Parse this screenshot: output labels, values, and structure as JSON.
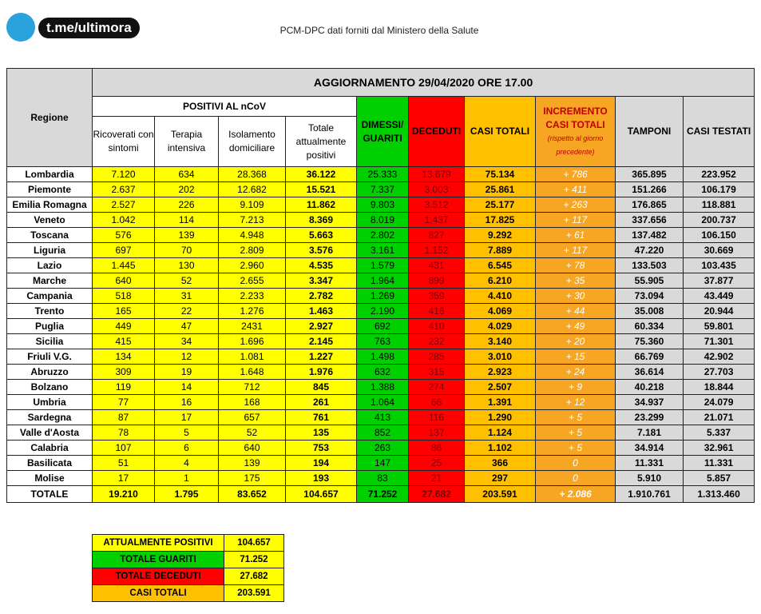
{
  "header": {
    "logo": "t.me/ultimora",
    "subtitle": "PCM-DPC dati forniti dal Ministero della Salute"
  },
  "table": {
    "title": "AGGIORNAMENTO 29/04/2020 ORE 17.00",
    "region_header": "Regione",
    "group_header": "POSITIVI AL nCoV",
    "columns": [
      "Ricoverati con sintomi",
      "Terapia intensiva",
      "Isolamento domiciliare",
      "Totale attualmente positivi",
      "DIMESSI/ GUARITI",
      "DECEDUTI",
      "CASI TOTALI",
      "INCREMENTO CASI TOTALI",
      "TAMPONI",
      "CASI TESTATI"
    ],
    "increment_note": "(rispetto al giorno precedente)",
    "rows": [
      [
        "Lombardia",
        "7.120",
        "634",
        "28.368",
        "36.122",
        "25.333",
        "13.679",
        "75.134",
        "+ 786",
        "365.895",
        "223.952"
      ],
      [
        "Piemonte",
        "2.637",
        "202",
        "12.682",
        "15.521",
        "7.337",
        "3.003",
        "25.861",
        "+ 411",
        "151.266",
        "106.179"
      ],
      [
        "Emilia Romagna",
        "2.527",
        "226",
        "9.109",
        "11.862",
        "9.803",
        "3.512",
        "25.177",
        "+ 263",
        "176.865",
        "118.881"
      ],
      [
        "Veneto",
        "1.042",
        "114",
        "7.213",
        "8.369",
        "8.019",
        "1.437",
        "17.825",
        "+ 117",
        "337.656",
        "200.737"
      ],
      [
        "Toscana",
        "576",
        "139",
        "4.948",
        "5.663",
        "2.802",
        "827",
        "9.292",
        "+ 61",
        "137.482",
        "106.150"
      ],
      [
        "Liguria",
        "697",
        "70",
        "2.809",
        "3.576",
        "3.161",
        "1.152",
        "7.889",
        "+ 117",
        "47.220",
        "30.669"
      ],
      [
        "Lazio",
        "1.445",
        "130",
        "2.960",
        "4.535",
        "1.579",
        "431",
        "6.545",
        "+ 78",
        "133.503",
        "103.435"
      ],
      [
        "Marche",
        "640",
        "52",
        "2.655",
        "3.347",
        "1.964",
        "899",
        "6.210",
        "+ 35",
        "55.905",
        "37.877"
      ],
      [
        "Campania",
        "518",
        "31",
        "2.233",
        "2.782",
        "1.269",
        "359",
        "4.410",
        "+ 30",
        "73.094",
        "43.449"
      ],
      [
        "Trento",
        "165",
        "22",
        "1.276",
        "1.463",
        "2.190",
        "416",
        "4.069",
        "+ 44",
        "35.008",
        "20.944"
      ],
      [
        "Puglia",
        "449",
        "47",
        "2431",
        "2.927",
        "692",
        "410",
        "4.029",
        "+ 49",
        "60.334",
        "59.801"
      ],
      [
        "Sicilia",
        "415",
        "34",
        "1.696",
        "2.145",
        "763",
        "232",
        "3.140",
        "+ 20",
        "75.360",
        "71.301"
      ],
      [
        "Friuli V.G.",
        "134",
        "12",
        "1.081",
        "1.227",
        "1.498",
        "285",
        "3.010",
        "+ 15",
        "66.769",
        "42.902"
      ],
      [
        "Abruzzo",
        "309",
        "19",
        "1.648",
        "1.976",
        "632",
        "315",
        "2.923",
        "+ 24",
        "36.614",
        "27.703"
      ],
      [
        "Bolzano",
        "119",
        "14",
        "712",
        "845",
        "1.388",
        "274",
        "2.507",
        "+ 9",
        "40.218",
        "18.844"
      ],
      [
        "Umbria",
        "77",
        "16",
        "168",
        "261",
        "1.064",
        "66",
        "1.391",
        "+ 12",
        "34.937",
        "24.079"
      ],
      [
        "Sardegna",
        "87",
        "17",
        "657",
        "761",
        "413",
        "116",
        "1.290",
        "+ 5",
        "23.299",
        "21.071"
      ],
      [
        "Valle d'Aosta",
        "78",
        "5",
        "52",
        "135",
        "852",
        "137",
        "1.124",
        "+ 5",
        "7.181",
        "5.337"
      ],
      [
        "Calabria",
        "107",
        "6",
        "640",
        "753",
        "263",
        "86",
        "1.102",
        "+ 5",
        "34.914",
        "32.961"
      ],
      [
        "Basilicata",
        "51",
        "4",
        "139",
        "194",
        "147",
        "25",
        "366",
        "0",
        "11.331",
        "11.331"
      ],
      [
        "Molise",
        "17",
        "1",
        "175",
        "193",
        "83",
        "21",
        "297",
        "0",
        "5.910",
        "5.857"
      ]
    ],
    "total": [
      "TOTALE",
      "19.210",
      "1.795",
      "83.652",
      "104.657",
      "71.252",
      "27.682",
      "203.591",
      "+ 2.086",
      "1.910.761",
      "1.313.460"
    ]
  },
  "summary": [
    [
      "ATTUALMENTE POSITIVI",
      "104.657"
    ],
    [
      "TOTALE GUARITI",
      "71.252"
    ],
    [
      "TOTALE DECEDUTI",
      "27.682"
    ],
    [
      "CASI TOTALI",
      "203.591"
    ]
  ]
}
